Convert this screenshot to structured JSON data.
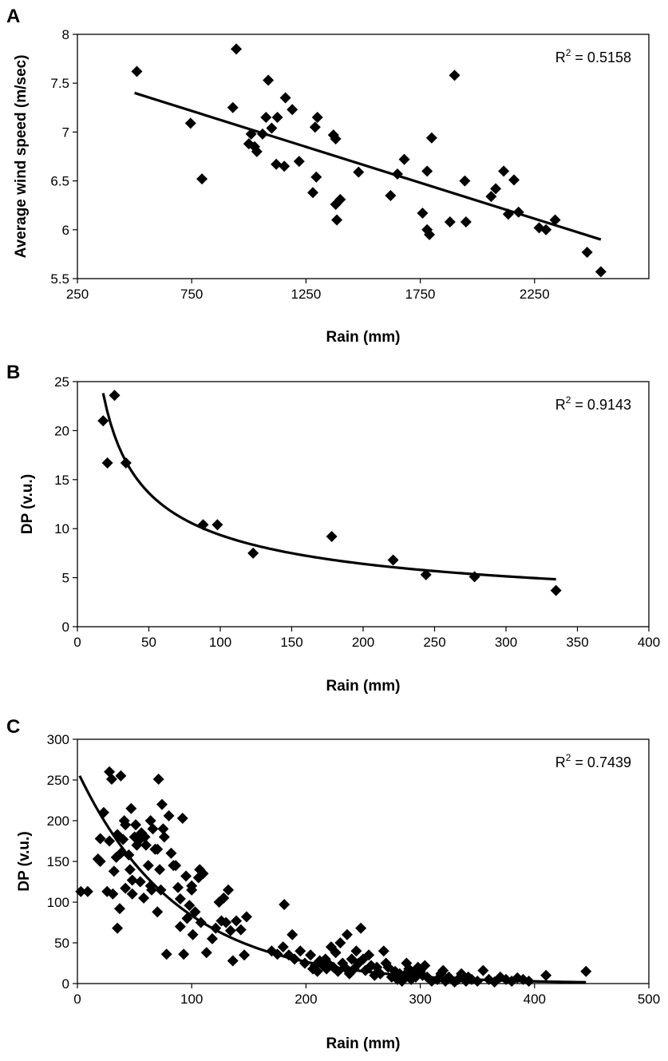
{
  "chart_data": [
    {
      "panel": "A",
      "type": "scatter",
      "xlabel": "Rain (mm)",
      "ylabel": "Average wind speed (m/sec)",
      "xlim": [
        250,
        2750
      ],
      "ylim": [
        5.5,
        8
      ],
      "xticks": [
        "250",
        "750",
        "1250",
        "1750",
        "2250"
      ],
      "yticks": [
        "5.5",
        "6",
        "6.5",
        "7",
        "7.5",
        "8"
      ],
      "xtick_values": [
        250,
        750,
        1250,
        1750,
        2250
      ],
      "ytick_values": [
        5.5,
        6,
        6.5,
        7,
        7.5,
        8
      ],
      "annotation": {
        "label": "R",
        "sup": "2",
        "rest": " = 0.5158"
      },
      "fit": {
        "kind": "linear",
        "points": [
          [
            500,
            7.4
          ],
          [
            2540,
            5.9
          ]
        ]
      },
      "points": [
        [
          510,
          7.62
        ],
        [
          745,
          7.09
        ],
        [
          795,
          6.52
        ],
        [
          930,
          7.25
        ],
        [
          945,
          7.85
        ],
        [
          1000,
          6.88
        ],
        [
          1010,
          6.98
        ],
        [
          1025,
          6.85
        ],
        [
          1035,
          6.8
        ],
        [
          1060,
          6.98
        ],
        [
          1075,
          7.15
        ],
        [
          1085,
          7.53
        ],
        [
          1100,
          7.04
        ],
        [
          1120,
          6.67
        ],
        [
          1125,
          7.15
        ],
        [
          1155,
          6.65
        ],
        [
          1160,
          7.35
        ],
        [
          1190,
          7.23
        ],
        [
          1220,
          6.7
        ],
        [
          1280,
          6.38
        ],
        [
          1290,
          7.05
        ],
        [
          1295,
          6.54
        ],
        [
          1300,
          7.15
        ],
        [
          1370,
          6.97
        ],
        [
          1380,
          6.93
        ],
        [
          1380,
          6.26
        ],
        [
          1385,
          6.1
        ],
        [
          1400,
          6.31
        ],
        [
          1480,
          6.59
        ],
        [
          1620,
          6.35
        ],
        [
          1650,
          6.57
        ],
        [
          1680,
          6.72
        ],
        [
          1760,
          6.17
        ],
        [
          1780,
          6.0
        ],
        [
          1780,
          6.6
        ],
        [
          1790,
          5.95
        ],
        [
          1800,
          6.94
        ],
        [
          1880,
          6.08
        ],
        [
          1900,
          7.58
        ],
        [
          1945,
          6.5
        ],
        [
          1950,
          6.08
        ],
        [
          2060,
          6.34
        ],
        [
          2080,
          6.42
        ],
        [
          2115,
          6.6
        ],
        [
          2135,
          6.16
        ],
        [
          2160,
          6.51
        ],
        [
          2180,
          6.18
        ],
        [
          2270,
          6.02
        ],
        [
          2300,
          6.0
        ],
        [
          2340,
          6.1
        ],
        [
          2480,
          5.77
        ],
        [
          2540,
          5.57
        ]
      ]
    },
    {
      "panel": "B",
      "type": "scatter",
      "xlabel": "Rain (mm)",
      "ylabel": "DP (v.u.)",
      "xlim": [
        0,
        400
      ],
      "ylim": [
        0,
        25
      ],
      "xticks": [
        "0",
        "50",
        "100",
        "150",
        "200",
        "250",
        "300",
        "350",
        "400"
      ],
      "yticks": [
        "0",
        "5",
        "10",
        "15",
        "20",
        "25"
      ],
      "xtick_values": [
        0,
        50,
        100,
        150,
        200,
        250,
        300,
        350,
        400
      ],
      "ytick_values": [
        0,
        5,
        10,
        15,
        20,
        25
      ],
      "annotation": {
        "label": "R",
        "sup": "2",
        "rest": " = 0.9143"
      },
      "fit": {
        "kind": "power",
        "a": 115.17,
        "b": -0.5452,
        "xrange": [
          18,
          335
        ]
      },
      "points": [
        [
          18,
          21.0
        ],
        [
          21,
          16.7
        ],
        [
          26,
          23.6
        ],
        [
          34,
          16.7
        ],
        [
          88,
          10.4
        ],
        [
          98,
          10.4
        ],
        [
          123,
          7.5
        ],
        [
          178,
          9.2
        ],
        [
          221,
          6.8
        ],
        [
          244,
          5.3
        ],
        [
          278,
          5.1
        ],
        [
          335,
          3.7
        ]
      ]
    },
    {
      "panel": "C",
      "type": "scatter",
      "xlabel": "Rain (mm)",
      "ylabel": "DP (v.u.)",
      "xlim": [
        0,
        500
      ],
      "ylim": [
        0,
        300
      ],
      "xticks": [
        "0",
        "100",
        "200",
        "300",
        "400",
        "500"
      ],
      "yticks": [
        "0",
        "50",
        "100",
        "150",
        "200",
        "250",
        "300"
      ],
      "xtick_values": [
        0,
        100,
        200,
        300,
        400,
        500
      ],
      "ytick_values": [
        0,
        50,
        100,
        150,
        200,
        250,
        300
      ],
      "annotation": {
        "label": "R",
        "sup": "2",
        "rest": " = 0.7439"
      },
      "fit": {
        "kind": "exponential",
        "a": 261,
        "b": -0.0114,
        "xrange": [
          2,
          445
        ]
      },
      "points": [
        [
          3,
          113
        ],
        [
          9,
          113
        ],
        [
          18,
          153
        ],
        [
          20,
          178
        ],
        [
          20,
          150
        ],
        [
          23,
          210
        ],
        [
          26,
          113
        ],
        [
          28,
          175
        ],
        [
          28,
          260
        ],
        [
          30,
          251
        ],
        [
          31,
          110
        ],
        [
          32,
          138
        ],
        [
          34,
          155
        ],
        [
          35,
          183
        ],
        [
          35,
          68
        ],
        [
          37,
          92
        ],
        [
          38,
          255
        ],
        [
          38,
          160
        ],
        [
          40,
          177
        ],
        [
          41,
          200
        ],
        [
          42,
          117
        ],
        [
          42,
          195
        ],
        [
          45,
          158
        ],
        [
          46,
          140
        ],
        [
          47,
          215
        ],
        [
          48,
          127
        ],
        [
          48,
          110
        ],
        [
          50,
          180
        ],
        [
          51,
          195
        ],
        [
          52,
          170
        ],
        [
          54,
          176
        ],
        [
          55,
          125
        ],
        [
          56,
          185
        ],
        [
          58,
          105
        ],
        [
          59,
          180
        ],
        [
          60,
          170
        ],
        [
          62,
          145
        ],
        [
          64,
          200
        ],
        [
          64,
          120
        ],
        [
          65,
          115
        ],
        [
          66,
          190
        ],
        [
          68,
          165
        ],
        [
          70,
          165
        ],
        [
          70,
          88
        ],
        [
          71,
          251
        ],
        [
          72,
          140
        ],
        [
          73,
          115
        ],
        [
          74,
          220
        ],
        [
          75,
          190
        ],
        [
          76,
          180
        ],
        [
          78,
          36
        ],
        [
          80,
          206
        ],
        [
          82,
          160
        ],
        [
          84,
          145
        ],
        [
          86,
          145
        ],
        [
          88,
          118
        ],
        [
          90,
          104
        ],
        [
          90,
          70
        ],
        [
          92,
          203
        ],
        [
          93,
          36
        ],
        [
          95,
          132
        ],
        [
          96,
          80
        ],
        [
          98,
          96
        ],
        [
          100,
          120
        ],
        [
          100,
          115
        ],
        [
          101,
          60
        ],
        [
          103,
          88
        ],
        [
          106,
          130
        ],
        [
          107,
          140
        ],
        [
          108,
          75
        ],
        [
          110,
          135
        ],
        [
          113,
          38
        ],
        [
          118,
          55
        ],
        [
          121,
          68
        ],
        [
          124,
          100
        ],
        [
          126,
          77
        ],
        [
          128,
          105
        ],
        [
          130,
          75
        ],
        [
          132,
          115
        ],
        [
          134,
          65
        ],
        [
          136,
          28
        ],
        [
          139,
          77
        ],
        [
          143,
          66
        ],
        [
          146,
          35
        ],
        [
          148,
          82
        ],
        [
          170,
          40
        ],
        [
          175,
          36
        ],
        [
          180,
          45
        ],
        [
          181,
          97
        ],
        [
          185,
          35
        ],
        [
          188,
          60
        ],
        [
          190,
          30
        ],
        [
          195,
          40
        ],
        [
          199,
          25
        ],
        [
          204,
          35
        ],
        [
          206,
          18
        ],
        [
          208,
          22
        ],
        [
          210,
          15
        ],
        [
          212,
          28
        ],
        [
          215,
          22
        ],
        [
          217,
          30
        ],
        [
          218,
          18
        ],
        [
          220,
          24
        ],
        [
          222,
          45
        ],
        [
          224,
          20
        ],
        [
          226,
          38
        ],
        [
          228,
          15
        ],
        [
          230,
          50
        ],
        [
          232,
          25
        ],
        [
          234,
          20
        ],
        [
          236,
          60
        ],
        [
          238,
          12
        ],
        [
          240,
          30
        ],
        [
          242,
          18
        ],
        [
          244,
          40
        ],
        [
          246,
          25
        ],
        [
          248,
          68
        ],
        [
          250,
          30
        ],
        [
          252,
          16
        ],
        [
          255,
          35
        ],
        [
          257,
          22
        ],
        [
          260,
          10
        ],
        [
          262,
          20
        ],
        [
          265,
          12
        ],
        [
          268,
          40
        ],
        [
          270,
          25
        ],
        [
          272,
          20
        ],
        [
          275,
          8
        ],
        [
          278,
          15
        ],
        [
          280,
          5
        ],
        [
          282,
          12
        ],
        [
          284,
          3
        ],
        [
          286,
          10
        ],
        [
          288,
          25
        ],
        [
          290,
          18
        ],
        [
          292,
          5
        ],
        [
          294,
          12
        ],
        [
          296,
          8
        ],
        [
          298,
          20
        ],
        [
          300,
          15
        ],
        [
          302,
          10
        ],
        [
          304,
          22
        ],
        [
          306,
          8
        ],
        [
          310,
          3
        ],
        [
          315,
          5
        ],
        [
          318,
          12
        ],
        [
          320,
          16
        ],
        [
          322,
          3
        ],
        [
          325,
          8
        ],
        [
          330,
          2
        ],
        [
          333,
          5
        ],
        [
          336,
          12
        ],
        [
          340,
          3
        ],
        [
          342,
          8
        ],
        [
          345,
          5
        ],
        [
          350,
          3
        ],
        [
          355,
          16
        ],
        [
          360,
          5
        ],
        [
          365,
          2
        ],
        [
          370,
          8
        ],
        [
          375,
          5
        ],
        [
          380,
          3
        ],
        [
          385,
          7
        ],
        [
          390,
          5
        ],
        [
          395,
          3
        ],
        [
          410,
          10
        ],
        [
          445,
          15
        ]
      ]
    }
  ]
}
